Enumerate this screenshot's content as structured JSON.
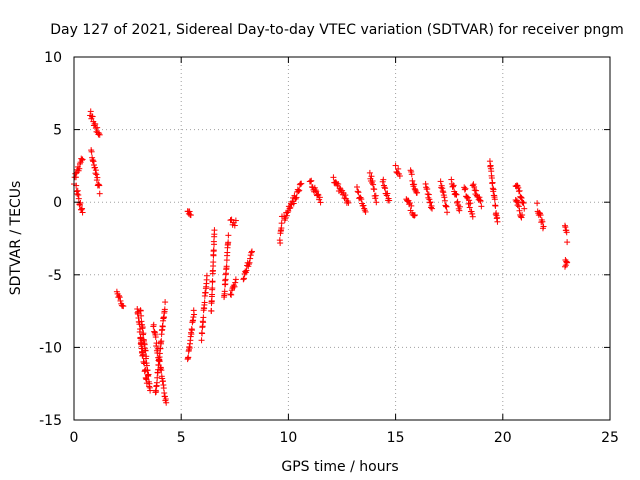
{
  "chart_data": {
    "type": "scatter",
    "title": "Day 127 of 2021, Sidereal Day-to-day VTEC variation (SDTVAR) for receiver pngm",
    "xlabel": "GPS time / hours",
    "ylabel": "SDTVAR / TECUs",
    "xlim": [
      0,
      25
    ],
    "ylim": [
      -15,
      10
    ],
    "xticks": [
      0,
      5,
      10,
      15,
      20,
      25
    ],
    "yticks": [
      -15,
      -10,
      -5,
      0,
      5,
      10
    ],
    "xtick_labels": [
      "0",
      "5",
      "10",
      "15",
      "20",
      "25"
    ],
    "ytick_labels": [
      "-15",
      "-10",
      "-5",
      "0",
      "5",
      "10"
    ],
    "grid": true,
    "marker": "plus",
    "marker_color": "#ff0000",
    "series": [
      {
        "name": "SDTVAR",
        "segments": [
          {
            "x0": 0.0,
            "x1": 0.4,
            "y0": 1.5,
            "y1": 3.0
          },
          {
            "x0": 0.1,
            "x1": 0.4,
            "y0": 1.0,
            "y1": -0.8
          },
          {
            "x0": 0.75,
            "x1": 1.2,
            "y0": 6.2,
            "y1": 4.5
          },
          {
            "x0": 0.8,
            "x1": 1.2,
            "y0": 3.5,
            "y1": 0.8
          },
          {
            "x0": 2.0,
            "x1": 2.3,
            "y0": -6.2,
            "y1": -7.3
          },
          {
            "x0": 2.95,
            "x1": 3.2,
            "y0": -7.2,
            "y1": -10.5
          },
          {
            "x0": 3.1,
            "x1": 3.55,
            "y0": -7.5,
            "y1": -13.0
          },
          {
            "x0": 3.1,
            "x1": 3.4,
            "y0": -9.5,
            "y1": -12.5
          },
          {
            "x0": 3.7,
            "x1": 4.3,
            "y0": -8.5,
            "y1": -13.8
          },
          {
            "x0": 3.8,
            "x1": 4.25,
            "y0": -13.2,
            "y1": -7.0
          },
          {
            "x0": 5.3,
            "x1": 5.45,
            "y0": -0.5,
            "y1": -0.8
          },
          {
            "x0": 5.3,
            "x1": 5.6,
            "y0": -11.0,
            "y1": -7.5
          },
          {
            "x0": 5.95,
            "x1": 6.2,
            "y0": -9.3,
            "y1": -5.0
          },
          {
            "x0": 6.4,
            "x1": 6.55,
            "y0": -7.5,
            "y1": -2.0
          },
          {
            "x0": 7.0,
            "x1": 7.2,
            "y0": -6.7,
            "y1": -2.5
          },
          {
            "x0": 7.3,
            "x1": 7.55,
            "y0": -1.2,
            "y1": -1.5
          },
          {
            "x0": 7.3,
            "x1": 7.55,
            "y0": -6.5,
            "y1": -5.5
          },
          {
            "x0": 7.9,
            "x1": 8.3,
            "y0": -5.2,
            "y1": -3.5
          },
          {
            "x0": 9.6,
            "x1": 9.7,
            "y0": -2.8,
            "y1": -1.2
          },
          {
            "x0": 9.8,
            "x1": 10.6,
            "y0": -1.2,
            "y1": 1.2
          },
          {
            "x0": 11.0,
            "x1": 11.5,
            "y0": 1.5,
            "y1": 0.0
          },
          {
            "x0": 12.1,
            "x1": 12.8,
            "y0": 1.5,
            "y1": 0.0
          },
          {
            "x0": 13.2,
            "x1": 13.6,
            "y0": 0.8,
            "y1": -0.5
          },
          {
            "x0": 13.8,
            "x1": 14.1,
            "y0": 2.0,
            "y1": 0.2
          },
          {
            "x0": 14.4,
            "x1": 14.7,
            "y0": 1.5,
            "y1": 0.0
          },
          {
            "x0": 15.0,
            "x1": 15.2,
            "y0": 2.3,
            "y1": 2.0
          },
          {
            "x0": 15.5,
            "x1": 15.9,
            "y0": 0.2,
            "y1": -1.0
          },
          {
            "x0": 15.7,
            "x1": 16.0,
            "y0": 2.0,
            "y1": 0.5
          },
          {
            "x0": 16.4,
            "x1": 16.7,
            "y0": 1.2,
            "y1": -0.5
          },
          {
            "x0": 17.1,
            "x1": 17.4,
            "y0": 1.3,
            "y1": -0.5
          },
          {
            "x0": 17.6,
            "x1": 18.0,
            "y0": 1.5,
            "y1": -0.5
          },
          {
            "x0": 18.2,
            "x1": 18.6,
            "y0": 1.0,
            "y1": -0.8
          },
          {
            "x0": 18.6,
            "x1": 19.0,
            "y0": 1.2,
            "y1": -0.2
          },
          {
            "x0": 19.4,
            "x1": 19.75,
            "y0": 2.7,
            "y1": -1.5
          },
          {
            "x0": 20.6,
            "x1": 21.0,
            "y0": 1.2,
            "y1": -0.2
          },
          {
            "x0": 20.6,
            "x1": 20.9,
            "y0": 0.2,
            "y1": -1.0
          },
          {
            "x0": 21.6,
            "x1": 21.9,
            "y0": -0.3,
            "y1": -1.8
          },
          {
            "x0": 22.9,
            "x1": 23.0,
            "y0": -1.5,
            "y1": -2.5
          },
          {
            "x0": 22.9,
            "x1": 23.0,
            "y0": -4.2,
            "y1": -4.3
          }
        ]
      }
    ]
  }
}
